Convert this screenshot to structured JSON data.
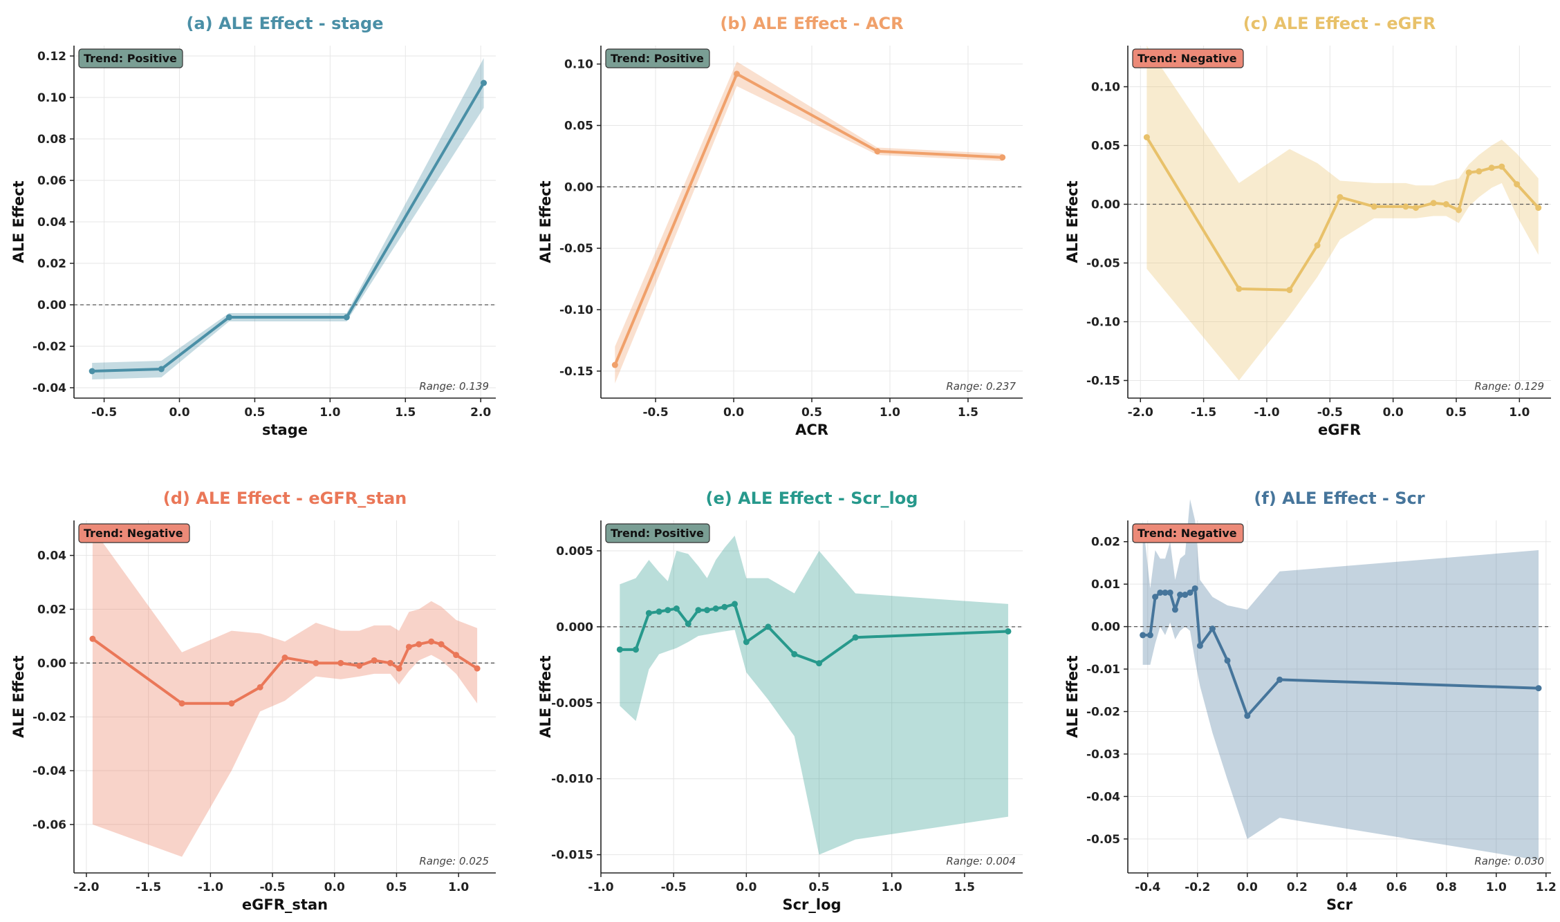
{
  "chart_data": [
    {
      "type": "line",
      "panel": "a",
      "title": "(a) ALE Effect - stage",
      "xlabel": "stage",
      "ylabel": "ALE Effect",
      "color": "#4a8fa6",
      "trend": "Trend: Positive",
      "range_label": "Range: 0.139",
      "xlim": [
        -0.7,
        2.1
      ],
      "ylim": [
        -0.045,
        0.125
      ],
      "xticks": [
        -0.5,
        0.0,
        0.5,
        1.0,
        1.5,
        2.0
      ],
      "xtick_labels": [
        "-0.5",
        "0.0",
        "0.5",
        "1.0",
        "1.5",
        "2.0"
      ],
      "yticks": [
        -0.04,
        -0.02,
        0.0,
        0.02,
        0.04,
        0.06,
        0.08,
        0.1,
        0.12
      ],
      "ytick_labels": [
        "-0.04",
        "-0.02",
        "0.00",
        "0.02",
        "0.04",
        "0.06",
        "0.08",
        "0.10",
        "0.12"
      ],
      "x": [
        -0.58,
        -0.12,
        0.33,
        1.11,
        2.02
      ],
      "y": [
        -0.032,
        -0.031,
        -0.006,
        -0.006,
        0.107
      ],
      "lower": [
        -0.036,
        -0.035,
        -0.008,
        -0.008,
        0.095
      ],
      "upper": [
        -0.028,
        -0.027,
        -0.004,
        -0.004,
        0.119
      ]
    },
    {
      "type": "line",
      "panel": "b",
      "title": "(b) ALE Effect - ACR",
      "xlabel": "ACR",
      "ylabel": "ALE Effect",
      "color": "#f0a06a",
      "trend": "Trend: Positive",
      "range_label": "Range: 0.237",
      "xlim": [
        -0.85,
        1.85
      ],
      "ylim": [
        -0.172,
        0.115
      ],
      "xticks": [
        -0.5,
        0.0,
        0.5,
        1.0,
        1.5
      ],
      "xtick_labels": [
        "-0.5",
        "0.0",
        "0.5",
        "1.0",
        "1.5"
      ],
      "yticks": [
        -0.15,
        -0.1,
        -0.05,
        0.0,
        0.05,
        0.1
      ],
      "ytick_labels": [
        "-0.15",
        "-0.10",
        "-0.05",
        "0.00",
        "0.05",
        "0.10"
      ],
      "x": [
        -0.76,
        0.02,
        0.92,
        1.72
      ],
      "y": [
        -0.145,
        0.092,
        0.029,
        0.024
      ],
      "lower": [
        -0.16,
        0.082,
        0.026,
        0.021
      ],
      "upper": [
        -0.13,
        0.102,
        0.032,
        0.027
      ]
    },
    {
      "type": "line",
      "panel": "c",
      "title": "(c) ALE Effect - eGFR",
      "xlabel": "eGFR",
      "ylabel": "ALE Effect",
      "color": "#e8c16a",
      "trend": "Trend: Negative",
      "range_label": "Range: 0.129",
      "xlim": [
        -2.1,
        1.25
      ],
      "ylim": [
        -0.165,
        0.135
      ],
      "xticks": [
        -2.0,
        -1.5,
        -1.0,
        -0.5,
        0.0,
        0.5,
        1.0
      ],
      "xtick_labels": [
        "-2.0",
        "-1.5",
        "-1.0",
        "-0.5",
        "0.0",
        "0.5",
        "1.0"
      ],
      "yticks": [
        -0.15,
        -0.1,
        -0.05,
        0.0,
        0.05,
        0.1
      ],
      "ytick_labels": [
        "-0.15",
        "-0.10",
        "-0.05",
        "0.00",
        "0.05",
        "0.10"
      ],
      "x": [
        -1.95,
        -1.22,
        -0.82,
        -0.6,
        -0.42,
        -0.15,
        0.1,
        0.18,
        0.32,
        0.42,
        0.52,
        0.6,
        0.68,
        0.78,
        0.86,
        0.98,
        1.15
      ],
      "y": [
        0.057,
        -0.072,
        -0.073,
        -0.035,
        0.006,
        -0.002,
        -0.002,
        -0.003,
        0.001,
        0.0,
        -0.005,
        0.027,
        0.028,
        0.031,
        0.032,
        0.017,
        -0.003
      ],
      "lower": [
        -0.055,
        -0.15,
        -0.095,
        -0.062,
        -0.03,
        -0.012,
        -0.012,
        -0.012,
        -0.01,
        -0.01,
        -0.016,
        -0.002,
        0.006,
        0.014,
        0.018,
        -0.01,
        -0.043
      ],
      "upper": [
        0.135,
        0.018,
        0.047,
        0.035,
        0.02,
        0.018,
        0.018,
        0.016,
        0.016,
        0.02,
        0.022,
        0.034,
        0.042,
        0.05,
        0.055,
        0.043,
        0.022
      ]
    },
    {
      "type": "line",
      "panel": "d",
      "title": "(d) ALE Effect - eGFR_stan",
      "xlabel": "eGFR_stan",
      "ylabel": "ALE Effect",
      "color": "#ea7758",
      "trend": "Trend: Negative",
      "range_label": "Range: 0.025",
      "xlim": [
        -2.1,
        1.3
      ],
      "ylim": [
        -0.078,
        0.053
      ],
      "xticks": [
        -2.0,
        -1.5,
        -1.0,
        -0.5,
        0.0,
        0.5,
        1.0
      ],
      "xtick_labels": [
        "-2.0",
        "-1.5",
        "-1.0",
        "-0.5",
        "0.0",
        "0.5",
        "1.0"
      ],
      "yticks": [
        -0.06,
        -0.04,
        -0.02,
        0.0,
        0.02,
        0.04
      ],
      "ytick_labels": [
        "-0.06",
        "-0.04",
        "-0.02",
        "0.00",
        "0.02",
        "0.04"
      ],
      "x": [
        -1.95,
        -1.23,
        -0.83,
        -0.6,
        -0.4,
        -0.15,
        0.05,
        0.2,
        0.32,
        0.45,
        0.52,
        0.6,
        0.68,
        0.78,
        0.86,
        0.98,
        1.15
      ],
      "y": [
        0.009,
        -0.015,
        -0.015,
        -0.009,
        0.002,
        0.0,
        0.0,
        -0.001,
        0.001,
        0.0,
        -0.002,
        0.006,
        0.007,
        0.008,
        0.007,
        0.003,
        -0.002
      ],
      "lower": [
        -0.06,
        -0.072,
        -0.04,
        -0.018,
        -0.014,
        -0.005,
        -0.006,
        -0.005,
        -0.004,
        -0.004,
        -0.008,
        -0.003,
        0.001,
        0.003,
        0.001,
        -0.004,
        -0.015
      ],
      "upper": [
        0.05,
        0.004,
        0.012,
        0.011,
        0.008,
        0.015,
        0.012,
        0.012,
        0.014,
        0.014,
        0.012,
        0.019,
        0.02,
        0.023,
        0.021,
        0.016,
        0.013
      ]
    },
    {
      "type": "line",
      "panel": "e",
      "title": "(e) ALE Effect - Scr_log",
      "xlabel": "Scr_log",
      "ylabel": "ALE Effect",
      "color": "#27998c",
      "trend": "Trend: Positive",
      "range_label": "Range: 0.004",
      "xlim": [
        -1.0,
        1.9
      ],
      "ylim": [
        -0.0162,
        0.007
      ],
      "xticks": [
        -1.0,
        -0.5,
        0.0,
        0.5,
        1.0,
        1.5
      ],
      "xtick_labels": [
        "-1.0",
        "-0.5",
        "0.0",
        "0.5",
        "1.0",
        "1.5"
      ],
      "yticks": [
        -0.015,
        -0.01,
        -0.005,
        0.0,
        0.005
      ],
      "ytick_labels": [
        "-0.015",
        "-0.010",
        "-0.005",
        "0.000",
        "0.005"
      ],
      "x": [
        -0.87,
        -0.76,
        -0.67,
        -0.6,
        -0.54,
        -0.48,
        -0.4,
        -0.33,
        -0.27,
        -0.21,
        -0.15,
        -0.08,
        0.0,
        0.15,
        0.33,
        0.5,
        0.75,
        1.8
      ],
      "y": [
        -0.0015,
        -0.0015,
        0.0009,
        0.001,
        0.0011,
        0.0012,
        0.0002,
        0.0011,
        0.0011,
        0.0012,
        0.0013,
        0.0015,
        -0.001,
        0.0,
        -0.0018,
        -0.0024,
        -0.0007,
        -0.0003
      ],
      "lower": [
        -0.0052,
        -0.0062,
        -0.0028,
        -0.0018,
        -0.0016,
        -0.0014,
        -0.001,
        -0.0006,
        -0.0005,
        -0.0004,
        -0.0003,
        -0.0002,
        -0.003,
        -0.0048,
        -0.0072,
        -0.015,
        -0.014,
        -0.0125
      ],
      "upper": [
        0.0028,
        0.0032,
        0.0044,
        0.0036,
        0.003,
        0.005,
        0.0048,
        0.004,
        0.0032,
        0.0044,
        0.0052,
        0.006,
        0.0032,
        0.0032,
        0.0022,
        0.005,
        0.0022,
        0.0015
      ]
    },
    {
      "type": "line",
      "panel": "f",
      "title": "(f) ALE Effect - Scr",
      "xlabel": "Scr",
      "ylabel": "ALE Effect",
      "color": "#46759b",
      "trend": "Trend: Negative",
      "range_label": "Range: 0.030",
      "xlim": [
        -0.48,
        1.22
      ],
      "ylim": [
        -0.058,
        0.025
      ],
      "xticks": [
        -0.4,
        -0.2,
        0.0,
        0.2,
        0.4,
        0.6,
        0.8,
        1.0,
        1.2
      ],
      "xtick_labels": [
        "-0.4",
        "-0.2",
        "0.0",
        "0.2",
        "0.4",
        "0.6",
        "0.8",
        "1.0",
        "1.2"
      ],
      "yticks": [
        -0.05,
        -0.04,
        -0.03,
        -0.02,
        -0.01,
        0.0,
        0.01,
        0.02
      ],
      "ytick_labels": [
        "-0.05",
        "-0.04",
        "-0.03",
        "-0.02",
        "-0.01",
        "0.00",
        "0.01",
        "0.02"
      ],
      "x": [
        -0.42,
        -0.39,
        -0.37,
        -0.35,
        -0.33,
        -0.31,
        -0.29,
        -0.27,
        -0.25,
        -0.23,
        -0.21,
        -0.19,
        -0.14,
        -0.08,
        0.0,
        0.13,
        1.17
      ],
      "y": [
        -0.002,
        -0.002,
        0.007,
        0.008,
        0.008,
        0.008,
        0.004,
        0.0075,
        0.0075,
        0.008,
        0.009,
        -0.0045,
        -0.0005,
        -0.008,
        -0.021,
        -0.0125,
        -0.0145
      ],
      "lower": [
        -0.009,
        -0.009,
        -0.004,
        0.0,
        -0.002,
        0.001,
        -0.003,
        -0.001,
        0.0,
        -0.001,
        -0.008,
        -0.014,
        -0.025,
        -0.036,
        -0.05,
        -0.045,
        -0.055
      ],
      "upper": [
        0.025,
        0.009,
        0.018,
        0.016,
        0.016,
        0.02,
        0.011,
        0.016,
        0.017,
        0.03,
        0.025,
        0.011,
        0.007,
        0.005,
        0.004,
        0.013,
        0.018
      ]
    }
  ]
}
